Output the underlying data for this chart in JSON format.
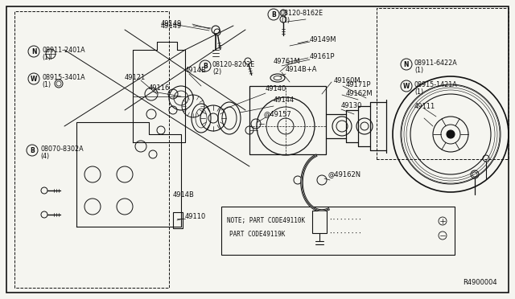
{
  "bg_color": "#f5f5f0",
  "fig_width": 6.4,
  "fig_height": 3.72,
  "ref_code": "R4900004",
  "note_line1": "NOTE; PART CODE49110K",
  "note_line2": "      PART CODE49119K"
}
